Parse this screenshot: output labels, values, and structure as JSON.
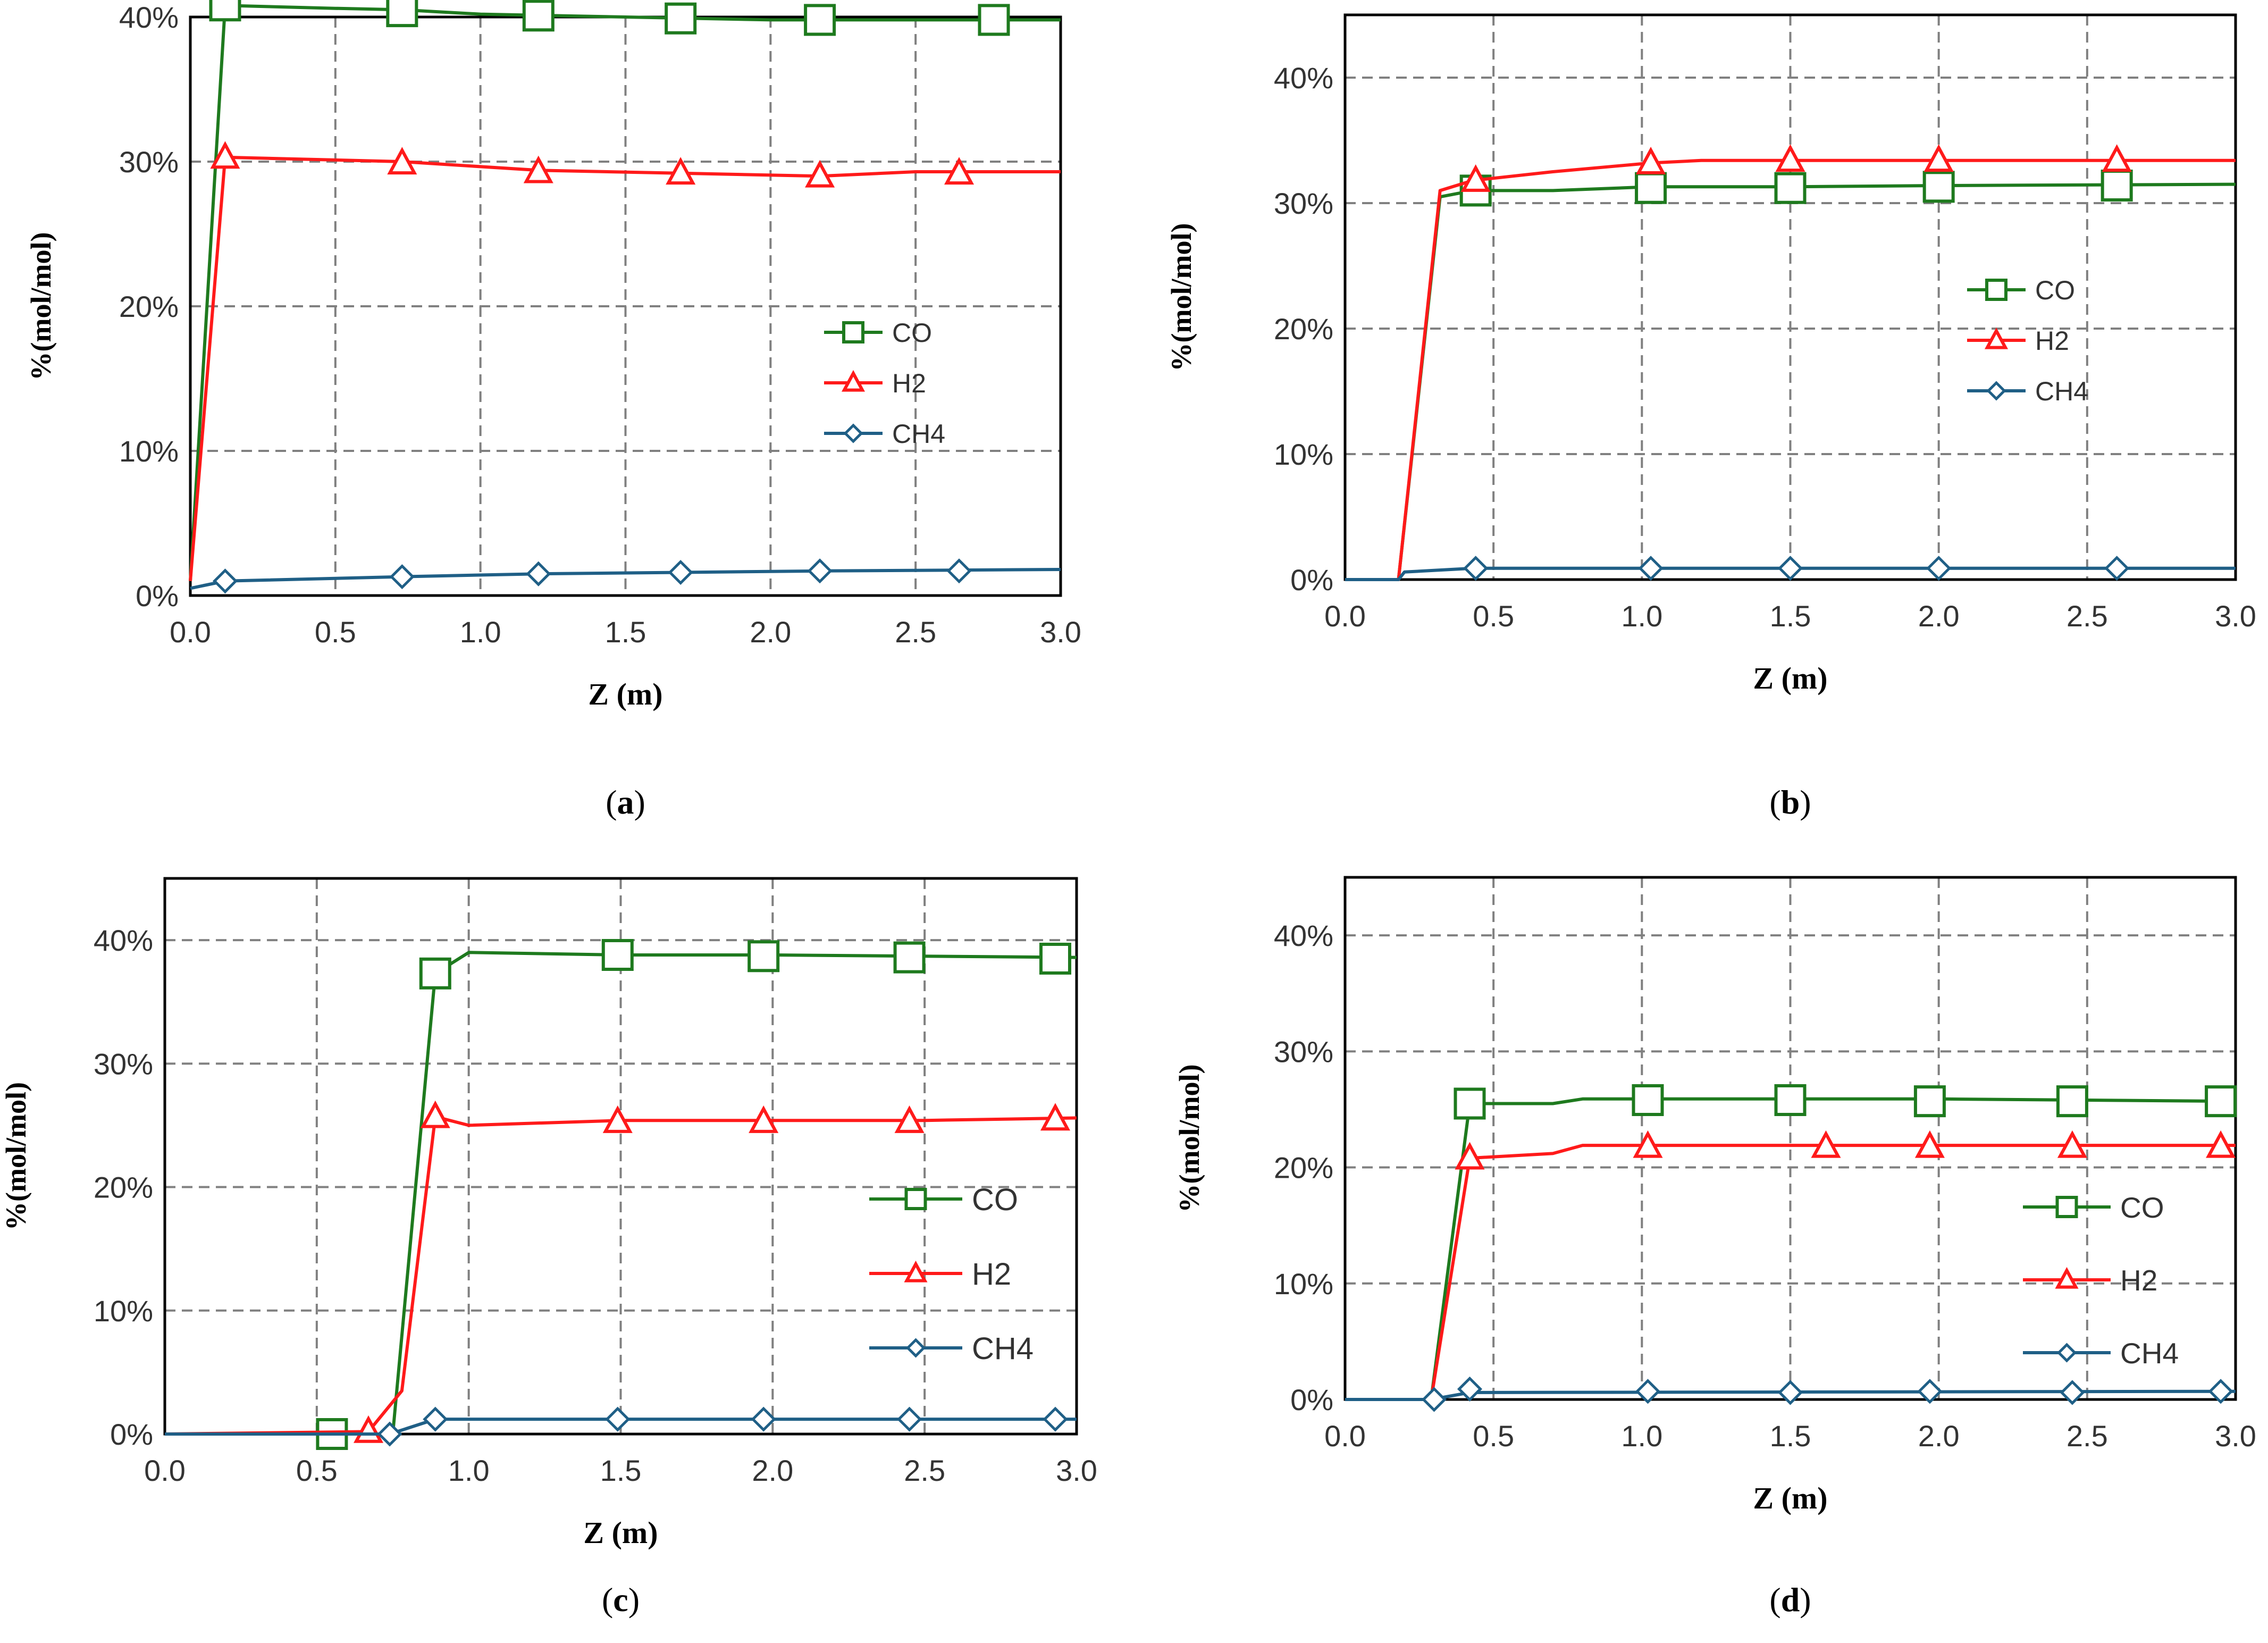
{
  "colors": {
    "CO": "#1e7a1e",
    "H2": "#ff1a1a",
    "CH4": "#1f5f86",
    "grid": "#808080",
    "axis": "#000000",
    "text": "#333333"
  },
  "chart_data": [
    {
      "panel": "a",
      "type": "line",
      "caption": {
        "open": "(",
        "letter": "a",
        "close": ")"
      },
      "xlabel": "Z (m)",
      "ylabel": "%(mol/mol)",
      "xlim": [
        0,
        3
      ],
      "ylim": [
        0,
        40
      ],
      "xticks": [
        "0.0",
        "0.5",
        "1.0",
        "1.5",
        "2.0",
        "2.5",
        "3.0"
      ],
      "yticks": [
        "0%",
        "10%",
        "20%",
        "30%",
        "40%"
      ],
      "legend": {
        "position": "right",
        "entries": [
          "CO",
          "H2",
          "CH4"
        ]
      },
      "series": [
        {
          "name": "CO",
          "marker": "square",
          "line": [
            [
              0,
              1
            ],
            [
              0.12,
              40.8
            ],
            [
              0.5,
              40.6
            ],
            [
              0.73,
              40.5
            ],
            [
              1.0,
              40.2
            ],
            [
              1.5,
              40.0
            ],
            [
              2.0,
              39.8
            ],
            [
              3.0,
              39.8
            ]
          ],
          "markers": [
            [
              0.12,
              40.8
            ],
            [
              0.73,
              40.4
            ],
            [
              1.2,
              40.1
            ],
            [
              1.69,
              39.9
            ],
            [
              2.17,
              39.8
            ],
            [
              2.77,
              39.8
            ]
          ]
        },
        {
          "name": "H2",
          "marker": "triangle",
          "line": [
            [
              0,
              1
            ],
            [
              0.12,
              30.3
            ],
            [
              0.73,
              30.0
            ],
            [
              1.2,
              29.4
            ],
            [
              1.69,
              29.2
            ],
            [
              2.17,
              29.0
            ],
            [
              2.5,
              29.3
            ],
            [
              3.0,
              29.3
            ]
          ],
          "markers": [
            [
              0.12,
              30.3
            ],
            [
              0.73,
              29.9
            ],
            [
              1.2,
              29.3
            ],
            [
              1.69,
              29.2
            ],
            [
              2.17,
              29.0
            ],
            [
              2.65,
              29.2
            ]
          ]
        },
        {
          "name": "CH4",
          "marker": "diamond",
          "line": [
            [
              0,
              0.5
            ],
            [
              0.12,
              1.0
            ],
            [
              0.73,
              1.3
            ],
            [
              1.2,
              1.5
            ],
            [
              2.17,
              1.7
            ],
            [
              3.0,
              1.8
            ]
          ],
          "markers": [
            [
              0.12,
              1.0
            ],
            [
              0.73,
              1.3
            ],
            [
              1.2,
              1.5
            ],
            [
              1.69,
              1.6
            ],
            [
              2.17,
              1.7
            ],
            [
              2.65,
              1.7
            ]
          ]
        }
      ]
    },
    {
      "panel": "b",
      "type": "line",
      "caption": {
        "open": "(",
        "letter": "b",
        "close": ")"
      },
      "xlabel": "Z (m)",
      "ylabel": "%(mol/mol)",
      "xlim": [
        0,
        3
      ],
      "ylim": [
        0,
        45
      ],
      "xticks": [
        "0.0",
        "0.5",
        "1.0",
        "1.5",
        "2.0",
        "2.5",
        "3.0"
      ],
      "yticks": [
        "0%",
        "10%",
        "20%",
        "30%",
        "40%"
      ],
      "legend": {
        "position": "right",
        "entries": [
          "CO",
          "H2",
          "CH4"
        ]
      },
      "series": [
        {
          "name": "CO",
          "marker": "square",
          "line": [
            [
              0,
              0
            ],
            [
              0.18,
              0
            ],
            [
              0.32,
              30.5
            ],
            [
              0.43,
              31.0
            ],
            [
              0.7,
              31.0
            ],
            [
              1.03,
              31.3
            ],
            [
              1.5,
              31.3
            ],
            [
              2.0,
              31.4
            ],
            [
              3.0,
              31.5
            ]
          ],
          "markers": [
            [
              0.44,
              31.0
            ],
            [
              1.03,
              31.2
            ],
            [
              1.5,
              31.2
            ],
            [
              2.0,
              31.3
            ],
            [
              2.6,
              31.4
            ]
          ]
        },
        {
          "name": "H2",
          "marker": "triangle",
          "line": [
            [
              0,
              0
            ],
            [
              0.18,
              0
            ],
            [
              0.32,
              31.0
            ],
            [
              0.43,
              31.8
            ],
            [
              0.7,
              32.5
            ],
            [
              1.03,
              33.2
            ],
            [
              1.2,
              33.4
            ],
            [
              3.0,
              33.4
            ]
          ],
          "markers": [
            [
              0.44,
              31.8
            ],
            [
              1.03,
              33.2
            ],
            [
              1.5,
              33.4
            ],
            [
              2.0,
              33.4
            ],
            [
              2.6,
              33.4
            ]
          ]
        },
        {
          "name": "CH4",
          "marker": "diamond",
          "line": [
            [
              0,
              0
            ],
            [
              0.18,
              0
            ],
            [
              0.2,
              0.6
            ],
            [
              0.43,
              0.9
            ],
            [
              3.0,
              0.9
            ]
          ],
          "markers": [
            [
              0.44,
              0.9
            ],
            [
              1.03,
              0.9
            ],
            [
              1.5,
              0.9
            ],
            [
              2.0,
              0.9
            ],
            [
              2.6,
              0.9
            ]
          ]
        }
      ]
    },
    {
      "panel": "c",
      "type": "line",
      "caption": {
        "open": "(",
        "letter": "c",
        "close": ")"
      },
      "xlabel": "Z (m)",
      "ylabel": "%(mol/mol)",
      "xlim": [
        0,
        3
      ],
      "ylim": [
        0,
        45
      ],
      "xticks": [
        "0.0",
        "0.5",
        "1.0",
        "1.5",
        "2.0",
        "2.5",
        "3.0"
      ],
      "yticks": [
        "0%",
        "10%",
        "20%",
        "30%",
        "40%"
      ],
      "legend": {
        "position": "right",
        "entries": [
          "CO",
          "H2",
          "CH4"
        ]
      },
      "series": [
        {
          "name": "CO",
          "marker": "square",
          "line": [
            [
              0,
              0
            ],
            [
              0.55,
              0
            ],
            [
              0.75,
              0
            ],
            [
              0.89,
              37.3
            ],
            [
              1.0,
              39.0
            ],
            [
              1.5,
              38.8
            ],
            [
              2.0,
              38.8
            ],
            [
              3.0,
              38.6
            ]
          ],
          "markers": [
            [
              0.55,
              0
            ],
            [
              0.89,
              37.3
            ],
            [
              1.49,
              38.8
            ],
            [
              1.97,
              38.7
            ],
            [
              2.45,
              38.6
            ],
            [
              2.93,
              38.5
            ]
          ]
        },
        {
          "name": "H2",
          "marker": "triangle",
          "line": [
            [
              0,
              0
            ],
            [
              0.67,
              0.2
            ],
            [
              0.78,
              3.5
            ],
            [
              0.89,
              25.7
            ],
            [
              1.0,
              25.0
            ],
            [
              1.5,
              25.4
            ],
            [
              2.5,
              25.4
            ],
            [
              3.0,
              25.6
            ]
          ],
          "markers": [
            [
              0.67,
              0.2
            ],
            [
              0.89,
              25.7
            ],
            [
              1.49,
              25.3
            ],
            [
              1.97,
              25.3
            ],
            [
              2.45,
              25.3
            ],
            [
              2.93,
              25.5
            ]
          ]
        },
        {
          "name": "CH4",
          "marker": "diamond",
          "line": [
            [
              0,
              0
            ],
            [
              0.74,
              0
            ],
            [
              0.89,
              1.2
            ],
            [
              3.0,
              1.2
            ]
          ],
          "markers": [
            [
              0.74,
              0
            ],
            [
              0.89,
              1.2
            ],
            [
              1.49,
              1.2
            ],
            [
              1.97,
              1.2
            ],
            [
              2.45,
              1.2
            ],
            [
              2.93,
              1.2
            ]
          ]
        }
      ]
    },
    {
      "panel": "d",
      "type": "line",
      "caption": {
        "open": "(",
        "letter": "d",
        "close": ")"
      },
      "xlabel": "Z (m)",
      "ylabel": "%(mol/mol)",
      "xlim": [
        0,
        3
      ],
      "ylim": [
        0,
        45
      ],
      "xticks": [
        "0.0",
        "0.5",
        "1.0",
        "1.5",
        "2.0",
        "2.5",
        "3.0"
      ],
      "yticks": [
        "0%",
        "10%",
        "20%",
        "30%",
        "40%"
      ],
      "legend": {
        "position": "right",
        "entries": [
          "CO",
          "H2",
          "CH4"
        ]
      },
      "series": [
        {
          "name": "CO",
          "marker": "square",
          "line": [
            [
              0,
              0
            ],
            [
              0.29,
              0
            ],
            [
              0.42,
              25.5
            ],
            [
              0.7,
              25.5
            ],
            [
              0.8,
              25.9
            ],
            [
              2.0,
              25.9
            ],
            [
              3.0,
              25.7
            ]
          ],
          "markers": [
            [
              0.42,
              25.5
            ],
            [
              1.02,
              25.8
            ],
            [
              1.5,
              25.8
            ],
            [
              1.97,
              25.7
            ],
            [
              2.45,
              25.7
            ],
            [
              2.95,
              25.7
            ]
          ]
        },
        {
          "name": "H2",
          "marker": "triangle",
          "line": [
            [
              0,
              0
            ],
            [
              0.29,
              0
            ],
            [
              0.42,
              20.8
            ],
            [
              0.7,
              21.2
            ],
            [
              0.8,
              21.9
            ],
            [
              3.0,
              21.9
            ]
          ],
          "markers": [
            [
              0.42,
              20.8
            ],
            [
              1.02,
              21.8
            ],
            [
              1.62,
              21.8
            ],
            [
              1.97,
              21.8
            ],
            [
              2.45,
              21.8
            ],
            [
              2.95,
              21.8
            ]
          ]
        },
        {
          "name": "CH4",
          "marker": "diamond",
          "line": [
            [
              0,
              0
            ],
            [
              0.29,
              0
            ],
            [
              0.42,
              0.6
            ],
            [
              3.0,
              0.7
            ]
          ],
          "markers": [
            [
              0.3,
              0
            ],
            [
              0.42,
              0.9
            ],
            [
              1.02,
              0.7
            ],
            [
              1.5,
              0.6
            ],
            [
              1.97,
              0.7
            ],
            [
              2.45,
              0.6
            ],
            [
              2.95,
              0.7
            ]
          ]
        }
      ]
    }
  ]
}
